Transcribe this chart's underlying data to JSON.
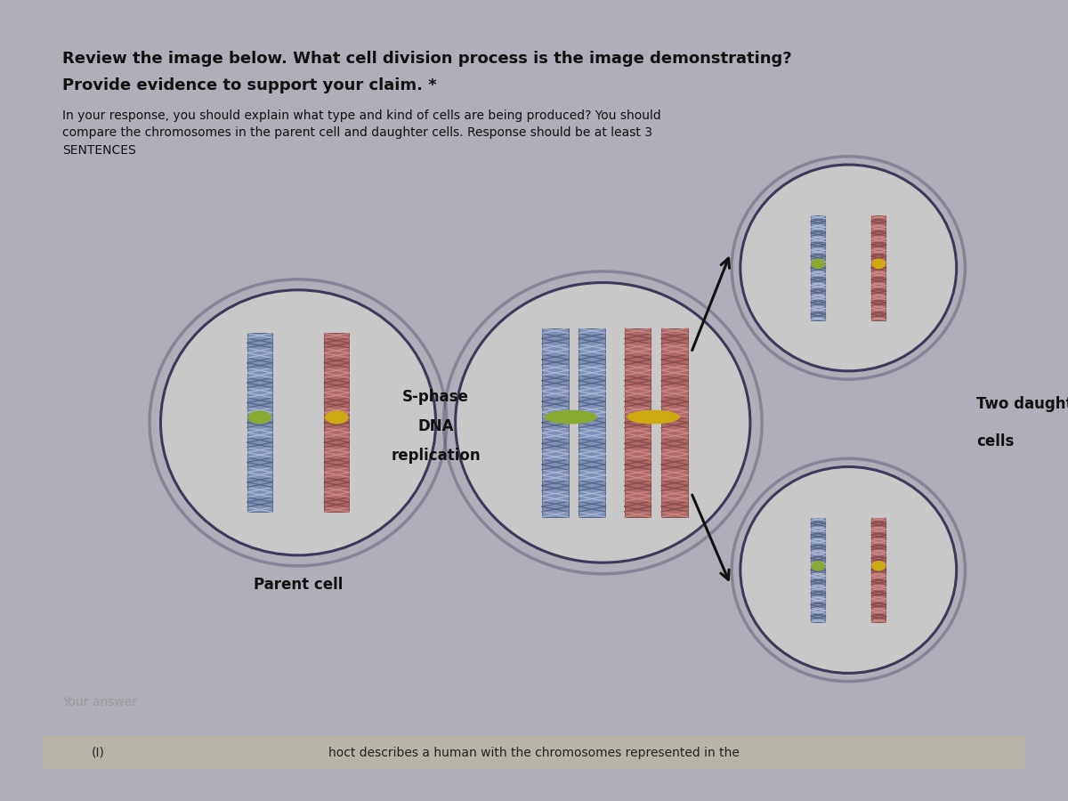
{
  "outer_bg": "#b0aeb8",
  "card_bg": "#e2e0d8",
  "title1": "Review the image below. What cell division process is the image demonstrating?",
  "title2": "Provide evidence to support your claim. *",
  "subtitle": "In your response, you should explain what type and kind of cells are being produced? You should\ncompare the chromosomes in the parent cell and daughter cells. Response should be at least 3\nSENTENCES",
  "label_parent": "Parent cell",
  "label_sphase": "S-phase",
  "label_dna": "DNA",
  "label_replication": "replication",
  "label_two_daughter": "Two daughter",
  "label_cells": "cells",
  "label_your_answer": "Your answer",
  "label_bottom_left": "(I)",
  "label_bottom_right": "hoct describes a human with the chromosomes represented in the",
  "cell_fill": "#c8c8c8",
  "cell_edge": "#3a3a5a",
  "chrom_blue_base": "#8090b8",
  "chrom_blue_light": "#b0c0d8",
  "chrom_blue_dark": "#506080",
  "chrom_red_base": "#b06868",
  "chrom_red_light": "#d09090",
  "chrom_red_dark": "#804848",
  "cent_green": "#88aa30",
  "cent_yellow": "#ccaa10",
  "arrow_col": "#111111",
  "title_fs": 13,
  "subtitle_fs": 10,
  "label_fs": 12,
  "small_fs": 10,
  "bottom_bar_col": "#b8b4a8",
  "bottom_text_col": "#222222"
}
